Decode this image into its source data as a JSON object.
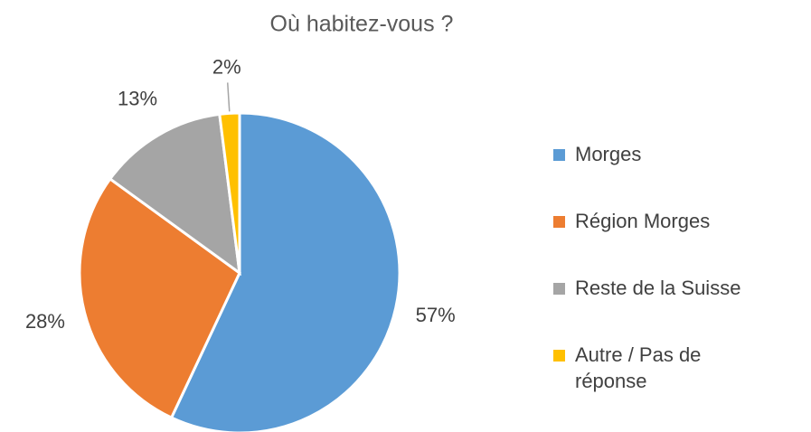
{
  "chart_data": {
    "type": "pie",
    "title": "Où habitez-vous ?",
    "categories": [
      "Morges",
      "Région Morges",
      "Reste de la Suisse",
      "Autre / Pas de réponse"
    ],
    "values": [
      57,
      28,
      13,
      2
    ],
    "value_labels": [
      "57%",
      "28%",
      "13%",
      "2%"
    ],
    "colors": [
      "#5b9bd5",
      "#ed7d31",
      "#a5a5a5",
      "#ffc000"
    ],
    "legend": "right"
  }
}
